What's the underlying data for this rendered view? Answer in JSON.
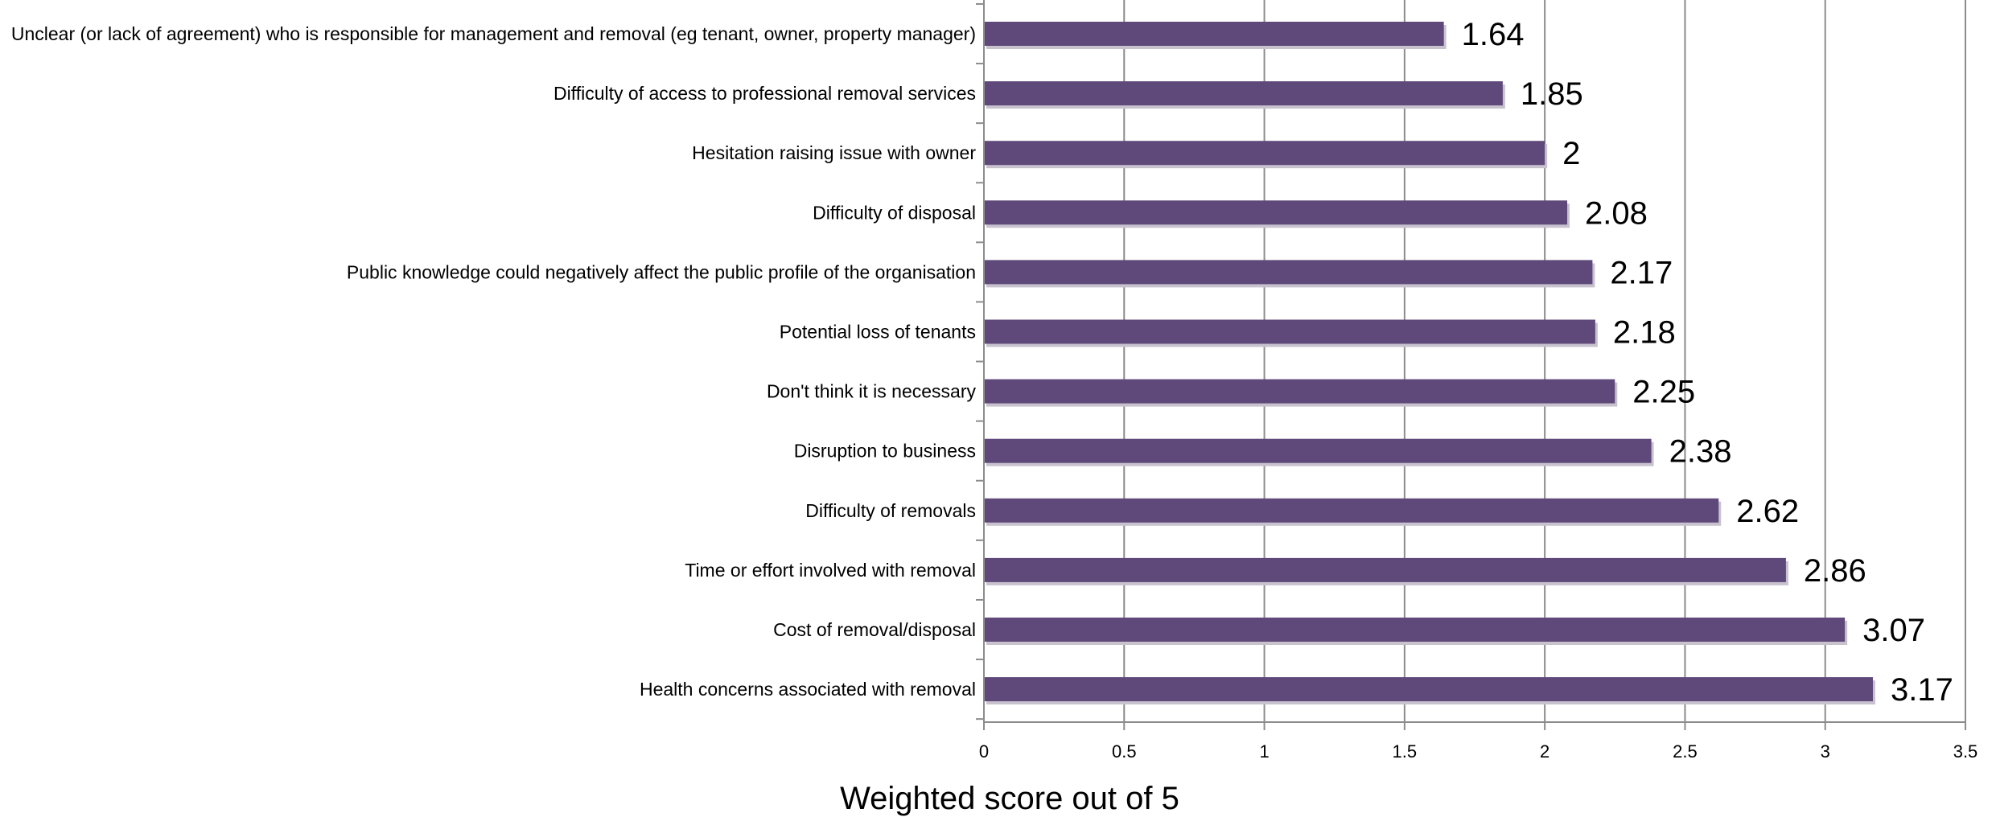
{
  "chart_data": {
    "type": "bar",
    "orientation": "horizontal",
    "categories": [
      "Unclear (or lack of agreement) who is responsible for management and removal (eg tenant, owner, property manager)",
      "Difficulty of access to professional removal services",
      "Hesitation raising issue with owner",
      "Difficulty of disposal",
      "Public knowledge could negatively affect the public profile of the organisation",
      "Potential loss of tenants",
      "Don't think it is necessary",
      "Disruption to business",
      "Difficulty of removals",
      "Time or effort involved with removal",
      "Cost of removal/disposal",
      "Health concerns associated with removal"
    ],
    "values": [
      1.64,
      1.85,
      2,
      2.08,
      2.17,
      2.18,
      2.25,
      2.38,
      2.62,
      2.86,
      3.07,
      3.17
    ],
    "data_labels": [
      "1.64",
      "1.85",
      "2",
      "2.08",
      "2.17",
      "2.18",
      "2.25",
      "2.38",
      "2.62",
      "2.86",
      "3.07",
      "3.17"
    ],
    "xticks": [
      "0",
      "0.5",
      "1",
      "1.5",
      "2",
      "2.5",
      "3",
      "3.5"
    ],
    "xlim": [
      0,
      3.5
    ],
    "xlabel": "Weighted score out of 5",
    "ylabel": "",
    "title": "",
    "grid": "vertical",
    "legend": "none",
    "bar_color": "#5F497A"
  }
}
